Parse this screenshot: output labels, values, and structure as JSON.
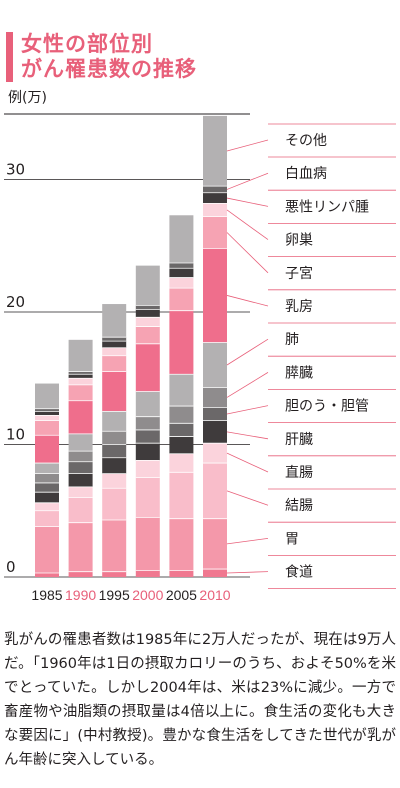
{
  "title": {
    "line1": "女性の部位別",
    "line2": "がん罹患数の推移"
  },
  "body_text": "乳がんの罹患者数は1985年に2万人だったが、現在は9万人だ。「1960年は1日の摂取カロリーのうち、およそ50%を米でとっていた。しかし2004年は、米は23%に減少。一方で畜産物や油脂類の摂取量は4倍以上に。食生活の変化も大きな要因に」(中村教授)。豊かな食生活をしてきた世代が乳がん年齢に突入している。",
  "colors": {
    "accent": "#e8607a",
    "year_highlight": "#e8607a"
  },
  "chart_data": {
    "type": "bar",
    "stacked": true,
    "ylabel": "例(万)",
    "ylim": [
      0,
      34
    ],
    "yticks": [
      0,
      10,
      20,
      30
    ],
    "grid": true,
    "legend_position": "right",
    "categories": [
      "1985",
      "1990",
      "1995",
      "2000",
      "2005",
      "2010"
    ],
    "highlight_categories": [
      "1990",
      "2000",
      "2010"
    ],
    "series": [
      {
        "name": "食道",
        "color": "#f07890",
        "values": [
          0.3,
          0.4,
          0.4,
          0.5,
          0.5,
          0.6
        ]
      },
      {
        "name": "胃",
        "color": "#f498aa",
        "values": [
          3.5,
          3.7,
          3.9,
          4.0,
          3.9,
          3.8
        ]
      },
      {
        "name": "結腸",
        "color": "#f9bdca",
        "values": [
          1.2,
          1.9,
          2.4,
          3.0,
          3.5,
          4.2
        ]
      },
      {
        "name": "直腸",
        "color": "#fbd3dc",
        "values": [
          0.6,
          0.8,
          1.1,
          1.3,
          1.4,
          1.5
        ]
      },
      {
        "name": "肝臓",
        "color": "#3f3b3c",
        "values": [
          0.8,
          1.0,
          1.2,
          1.3,
          1.3,
          1.7
        ]
      },
      {
        "name": "胆のう・胆管",
        "color": "#6b6869",
        "values": [
          0.7,
          0.9,
          1.0,
          1.0,
          1.0,
          1.0
        ]
      },
      {
        "name": "膵臓",
        "color": "#8f8c8d",
        "values": [
          0.7,
          0.8,
          1.0,
          1.0,
          1.3,
          1.5
        ]
      },
      {
        "name": "肺",
        "color": "#b3b1b2",
        "values": [
          0.8,
          1.3,
          1.5,
          1.9,
          2.4,
          3.4
        ]
      },
      {
        "name": "乳房",
        "color": "#ef6e8c",
        "values": [
          2.1,
          2.5,
          3.0,
          3.6,
          4.8,
          7.1
        ]
      },
      {
        "name": "子宮",
        "color": "#f6a3b3",
        "values": [
          1.1,
          1.2,
          1.2,
          1.3,
          1.7,
          2.4
        ]
      },
      {
        "name": "卵巣",
        "color": "#fbd3dc",
        "values": [
          0.4,
          0.5,
          0.6,
          0.7,
          0.8,
          1.0
        ]
      },
      {
        "name": "悪性リンパ腫",
        "color": "#3f3b3c",
        "values": [
          0.3,
          0.3,
          0.5,
          0.6,
          0.7,
          0.8
        ]
      },
      {
        "name": "白血病",
        "color": "#6b6869",
        "values": [
          0.2,
          0.2,
          0.3,
          0.3,
          0.4,
          0.5
        ]
      },
      {
        "name": "その他",
        "color": "#b3b1b2",
        "values": [
          1.9,
          2.4,
          2.5,
          3.0,
          3.6,
          5.3
        ]
      }
    ]
  }
}
